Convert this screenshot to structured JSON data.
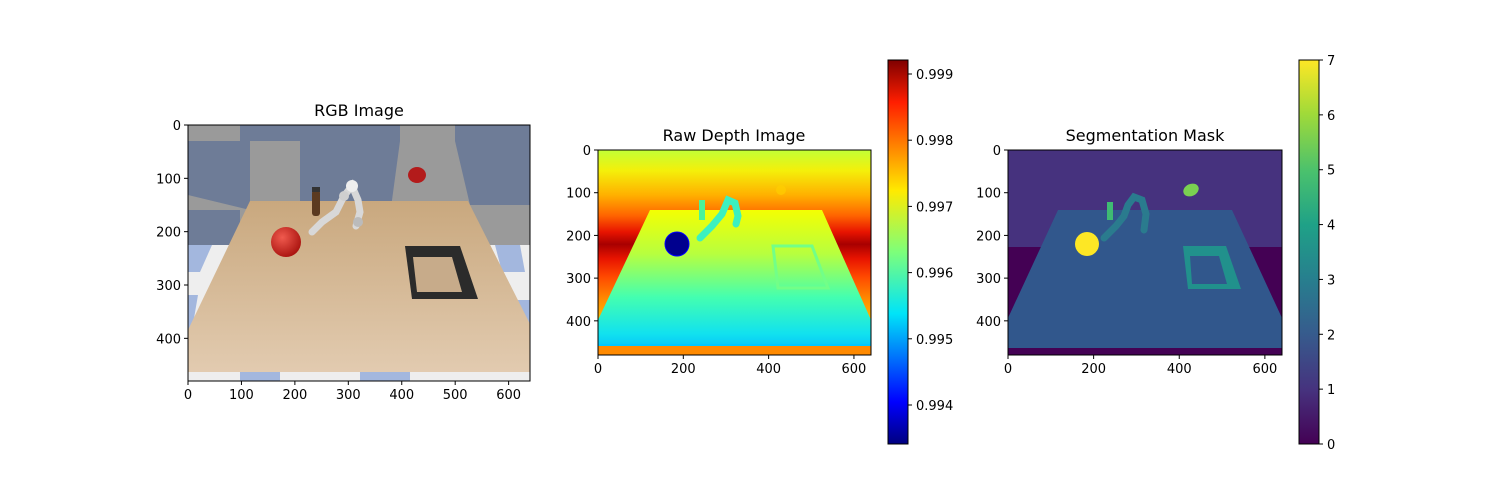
{
  "chart_data": [
    {
      "type": "image",
      "title": "RGB Image",
      "image_size": [
        640,
        480
      ],
      "xlim": [
        0,
        640
      ],
      "ylim": [
        480,
        0
      ],
      "x_ticks": [
        0,
        100,
        200,
        300,
        400,
        500,
        600
      ],
      "y_ticks": [
        0,
        100,
        200,
        300,
        400
      ],
      "description_objects": [
        "table",
        "red sphere",
        "floating red disc",
        "robot arm",
        "bottle",
        "black square frame"
      ]
    },
    {
      "type": "heatmap",
      "title": "Raw Depth Image",
      "colormap": "jet",
      "image_size": [
        640,
        480
      ],
      "xlim": [
        0,
        640
      ],
      "ylim": [
        480,
        0
      ],
      "x_ticks": [
        0,
        200,
        400,
        600
      ],
      "y_ticks": [
        0,
        100,
        200,
        300,
        400
      ],
      "colorbar": {
        "range": [
          0.99932,
          0.99926
        ],
        "vmin": 0.99935,
        "vmax": 0.99925,
        "ticks": [
          "0.999",
          "0.998",
          "0.997",
          "0.996",
          "0.995",
          "0.994"
        ],
        "tick_values": [
          0.999,
          0.998,
          0.997,
          0.996,
          0.995,
          0.994
        ]
      }
    },
    {
      "type": "heatmap",
      "title": "Segmentation Mask",
      "colormap": "viridis",
      "image_size": [
        640,
        480
      ],
      "xlim": [
        0,
        640
      ],
      "ylim": [
        480,
        0
      ],
      "x_ticks": [
        0,
        200,
        400,
        600
      ],
      "y_ticks": [
        0,
        100,
        200,
        300,
        400
      ],
      "colorbar": {
        "vmin": 0,
        "vmax": 7,
        "ticks": [
          "0",
          "1",
          "2",
          "3",
          "4",
          "5",
          "6",
          "7"
        ],
        "tick_values": [
          0,
          1,
          2,
          3,
          4,
          5,
          6,
          7
        ]
      },
      "labels_present": [
        0,
        1,
        2,
        4,
        6,
        7
      ]
    }
  ]
}
